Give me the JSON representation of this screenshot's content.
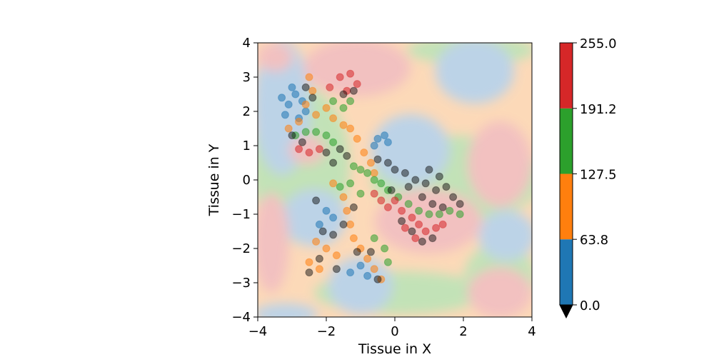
{
  "chart_data": {
    "type": "scatter",
    "title": "",
    "xlabel": "Tissue in X",
    "ylabel": "Tissue in Y",
    "xlim": [
      -4,
      4
    ],
    "ylim": [
      -4,
      4
    ],
    "x_ticks": [
      -4,
      -2,
      0,
      2,
      4
    ],
    "y_ticks": [
      -4,
      -3,
      -2,
      -1,
      0,
      1,
      2,
      3,
      4
    ],
    "x_tick_labels": [
      "−4",
      "−2",
      "0",
      "2",
      "4"
    ],
    "y_tick_labels": [
      "−4",
      "−3",
      "−2",
      "−1",
      "0",
      "1",
      "2",
      "3",
      "4"
    ],
    "grid": false,
    "background": "filled contour field with pale blue, orange, green and red regions",
    "colorbar": {
      "boundaries": [
        0.0,
        63.8,
        127.5,
        191.2,
        255.0
      ],
      "tick_labels": [
        "0.0",
        "63.8",
        "127.5",
        "191.2",
        "255.0"
      ],
      "colors": [
        "#1f77b4",
        "#ff7f0e",
        "#2ca02c",
        "#d62728"
      ],
      "under_color": "#000000",
      "extend": "min"
    },
    "clusters": [
      {
        "color": "#1f77b4",
        "points": [
          [
            -3.1,
            2.2
          ],
          [
            -2.9,
            2.5
          ],
          [
            -3.2,
            1.9
          ],
          [
            -2.7,
            2.3
          ],
          [
            -3.0,
            2.7
          ],
          [
            -2.8,
            1.8
          ],
          [
            -3.3,
            2.4
          ],
          [
            -2.6,
            2.0
          ],
          [
            -0.5,
            1.2
          ],
          [
            -0.3,
            1.3
          ],
          [
            -0.6,
            1.0
          ],
          [
            -0.2,
            1.1
          ],
          [
            -2.0,
            -0.9
          ],
          [
            -1.8,
            -1.1
          ],
          [
            -2.2,
            -1.3
          ],
          [
            -1.0,
            -2.5
          ],
          [
            -0.8,
            -2.8
          ],
          [
            -1.3,
            -2.7
          ]
        ]
      },
      {
        "color": "#ff7f0e",
        "points": [
          [
            -2.5,
            3.0
          ],
          [
            -2.4,
            2.6
          ],
          [
            -2.6,
            2.2
          ],
          [
            -2.8,
            1.7
          ],
          [
            -3.1,
            1.5
          ],
          [
            -2.3,
            1.9
          ],
          [
            -2.0,
            2.1
          ],
          [
            -1.8,
            1.8
          ],
          [
            -1.5,
            1.6
          ],
          [
            -1.3,
            1.5
          ],
          [
            -1.1,
            1.2
          ],
          [
            -0.9,
            0.8
          ],
          [
            -0.7,
            0.5
          ],
          [
            -0.6,
            0.2
          ],
          [
            -1.8,
            -0.1
          ],
          [
            -1.5,
            -0.5
          ],
          [
            -1.4,
            -0.9
          ],
          [
            -1.3,
            -1.3
          ],
          [
            -1.2,
            -1.7
          ],
          [
            -1.0,
            -2.0
          ],
          [
            -0.8,
            -2.3
          ],
          [
            -0.6,
            -2.6
          ],
          [
            -0.4,
            -2.9
          ],
          [
            -2.3,
            -1.8
          ],
          [
            -2.0,
            -2.0
          ],
          [
            -1.7,
            -2.2
          ],
          [
            -2.5,
            -2.4
          ],
          [
            -2.2,
            -2.6
          ]
        ]
      },
      {
        "color": "#2ca02c",
        "points": [
          [
            -1.8,
            2.3
          ],
          [
            -1.5,
            2.1
          ],
          [
            -1.3,
            2.3
          ],
          [
            -2.9,
            1.3
          ],
          [
            -2.6,
            1.4
          ],
          [
            -2.3,
            1.4
          ],
          [
            -2.0,
            1.3
          ],
          [
            -1.8,
            1.1
          ],
          [
            -1.2,
            0.4
          ],
          [
            -1.0,
            0.3
          ],
          [
            -0.8,
            0.2
          ],
          [
            -0.6,
            0.0
          ],
          [
            -0.4,
            -0.1
          ],
          [
            -0.2,
            -0.3
          ],
          [
            0.1,
            -0.5
          ],
          [
            0.4,
            -0.7
          ],
          [
            0.7,
            -0.9
          ],
          [
            1.0,
            -1.0
          ],
          [
            1.3,
            -1.0
          ],
          [
            1.6,
            -0.9
          ],
          [
            1.9,
            -1.0
          ],
          [
            -1.6,
            -0.2
          ],
          [
            -1.3,
            -0.1
          ],
          [
            -1.0,
            -0.4
          ],
          [
            -0.6,
            -1.7
          ],
          [
            -0.3,
            -2.0
          ],
          [
            -0.2,
            -2.4
          ]
        ]
      },
      {
        "color": "#d62728",
        "points": [
          [
            -1.6,
            3.0
          ],
          [
            -1.3,
            3.1
          ],
          [
            -1.1,
            2.8
          ],
          [
            -1.4,
            2.6
          ],
          [
            -1.9,
            2.7
          ],
          [
            -2.8,
            0.9
          ],
          [
            -2.5,
            0.8
          ],
          [
            -2.2,
            0.9
          ],
          [
            -0.6,
            -0.4
          ],
          [
            -0.4,
            -0.6
          ],
          [
            -0.2,
            -0.8
          ],
          [
            0.0,
            -0.6
          ],
          [
            0.2,
            -0.9
          ],
          [
            0.5,
            -1.1
          ],
          [
            0.7,
            -1.3
          ],
          [
            0.9,
            -1.5
          ],
          [
            1.2,
            -1.4
          ],
          [
            1.4,
            -1.3
          ],
          [
            0.3,
            -1.4
          ],
          [
            0.6,
            -1.7
          ]
        ]
      },
      {
        "color": "#000000",
        "points": [
          [
            -2.0,
            0.8
          ],
          [
            -1.8,
            0.5
          ],
          [
            -1.6,
            0.9
          ],
          [
            -1.4,
            0.7
          ],
          [
            -0.5,
            0.6
          ],
          [
            -0.2,
            0.5
          ],
          [
            0.0,
            0.3
          ],
          [
            0.3,
            0.2
          ],
          [
            0.6,
            0.0
          ],
          [
            0.9,
            -0.1
          ],
          [
            1.2,
            -0.3
          ],
          [
            1.5,
            -0.2
          ],
          [
            1.7,
            -0.5
          ],
          [
            1.9,
            -0.7
          ],
          [
            1.3,
            0.1
          ],
          [
            1.0,
            0.3
          ],
          [
            0.4,
            -0.2
          ],
          [
            -0.1,
            -0.3
          ],
          [
            0.8,
            -0.5
          ],
          [
            1.1,
            -0.7
          ],
          [
            1.4,
            -0.8
          ],
          [
            0.2,
            -1.2
          ],
          [
            0.5,
            -1.5
          ],
          [
            0.8,
            -1.8
          ],
          [
            1.1,
            -1.7
          ],
          [
            -1.2,
            -0.8
          ],
          [
            -1.5,
            -1.3
          ],
          [
            -1.8,
            -1.6
          ],
          [
            -2.3,
            -0.6
          ],
          [
            -2.1,
            -1.5
          ],
          [
            -2.5,
            -2.7
          ],
          [
            -2.2,
            -2.3
          ],
          [
            -1.7,
            -2.6
          ],
          [
            -1.1,
            -2.1
          ],
          [
            -0.7,
            -2.1
          ],
          [
            -0.5,
            -2.9
          ],
          [
            -2.6,
            2.7
          ],
          [
            -2.4,
            2.4
          ],
          [
            -1.5,
            2.5
          ],
          [
            -1.2,
            2.6
          ],
          [
            -3.0,
            1.3
          ],
          [
            -2.7,
            1.1
          ]
        ]
      }
    ]
  }
}
